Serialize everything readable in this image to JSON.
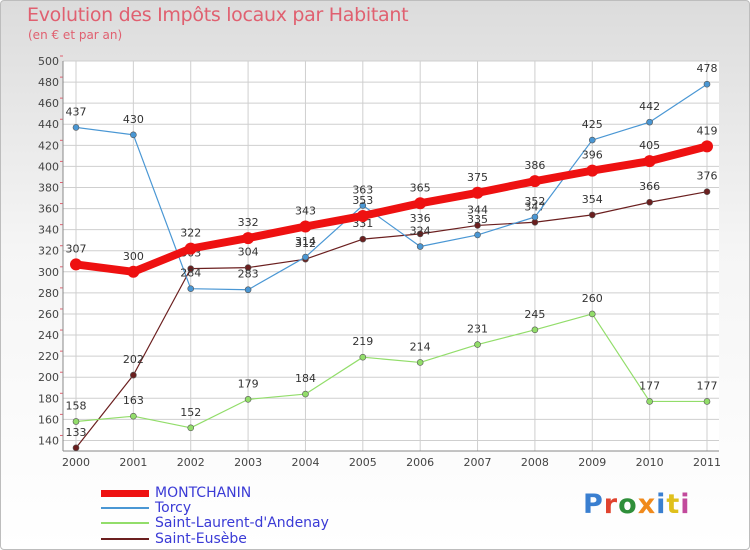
{
  "title": "Evolution des Impôts locaux par Habitant",
  "subtitle": "(en € et par an)",
  "logo": "Proxiti",
  "chart_data": {
    "type": "line",
    "categories": [
      "2000",
      "2001",
      "2002",
      "2003",
      "2004",
      "2005",
      "2006",
      "2007",
      "2008",
      "2009",
      "2010",
      "2011"
    ],
    "ylim": [
      130,
      500
    ],
    "yticks": [
      140,
      160,
      180,
      200,
      220,
      240,
      260,
      280,
      300,
      320,
      340,
      360,
      380,
      400,
      420,
      440,
      460,
      480,
      500
    ],
    "series": [
      {
        "name": "MONTCHANIN",
        "color": "#ee1111",
        "values": [
          307,
          300,
          322,
          332,
          343,
          353,
          365,
          375,
          386,
          396,
          405,
          419
        ]
      },
      {
        "name": "Torcy",
        "color": "#4a97d4",
        "values": [
          437,
          430,
          284,
          283,
          314,
          363,
          324,
          335,
          352,
          425,
          442,
          478
        ]
      },
      {
        "name": "Saint-Laurent-d'Andenay",
        "color": "#92dd6a",
        "values": [
          158,
          163,
          152,
          179,
          184,
          219,
          214,
          231,
          245,
          260,
          177,
          177
        ]
      },
      {
        "name": "Saint-Eusèbe",
        "color": "#6b1f1f",
        "values": [
          133,
          202,
          303,
          304,
          312,
          331,
          336,
          344,
          347,
          354,
          366,
          376
        ]
      }
    ],
    "data_labels": [
      [
        "307",
        "300",
        "322",
        "332",
        "343",
        "353",
        "365",
        "375",
        "386",
        "396",
        "405",
        "419"
      ],
      [
        "437",
        "430",
        "284",
        "283",
        "314",
        "363",
        "324",
        "335",
        "352",
        "425",
        "442",
        "478"
      ],
      [
        "158",
        "163",
        "152",
        "179",
        "184",
        "219",
        "214",
        "231",
        "245",
        "260",
        "177",
        "177"
      ],
      [
        "133",
        "202",
        "303",
        "304",
        "312",
        "331",
        "336",
        "344",
        "347",
        "354",
        "366",
        "376"
      ]
    ]
  }
}
